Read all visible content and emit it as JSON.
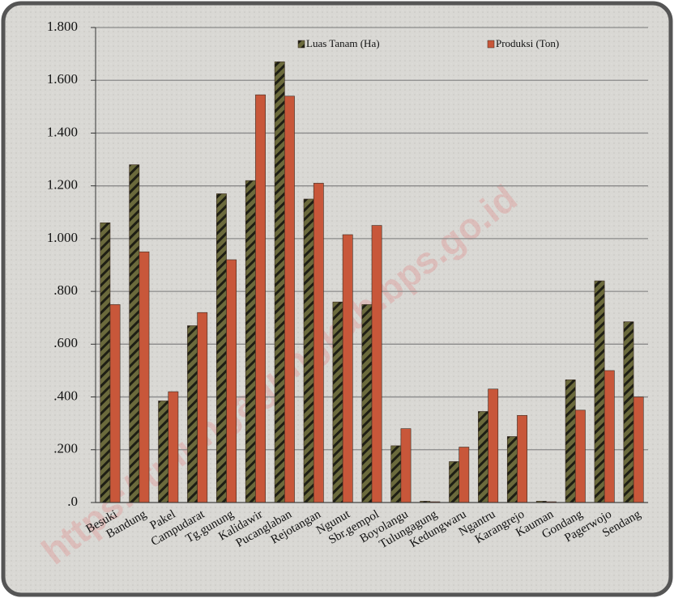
{
  "chart_data": {
    "type": "bar",
    "categories": [
      "Besuki",
      "Bandung",
      "Pakel",
      "Campudarat",
      "Tg.gunung",
      "Kalidawir",
      "Pucanglaban",
      "Rejotangan",
      "Ngunut",
      "Sbr.gempol",
      "Boyolangu",
      "Tulungagung",
      "Kedungwaru",
      "Ngantru",
      "Karangrejo",
      "Kauman",
      "Gondang",
      "Pagerwojo",
      "Sendang"
    ],
    "series": [
      {
        "name": "Luas Tanam (Ha)",
        "color": "#6b6a3c",
        "values": [
          1060,
          1280,
          385,
          670,
          1170,
          1220,
          1670,
          1150,
          760,
          750,
          215,
          5,
          155,
          345,
          250,
          5,
          465,
          840,
          685
        ]
      },
      {
        "name": "Produksi (Ton)",
        "color": "#c8573a",
        "values": [
          750,
          950,
          420,
          720,
          920,
          1545,
          1540,
          1210,
          1015,
          1050,
          280,
          3,
          210,
          430,
          330,
          3,
          350,
          500,
          400
        ]
      }
    ],
    "ylim": [
      0,
      1800
    ],
    "yticks": [
      {
        "value": 0,
        "label": ".0"
      },
      {
        "value": 200,
        "label": ".200"
      },
      {
        "value": 400,
        "label": ".400"
      },
      {
        "value": 600,
        "label": ".600"
      },
      {
        "value": 800,
        "label": ".800"
      },
      {
        "value": 1000,
        "label": "1.000"
      },
      {
        "value": 1200,
        "label": "1.200"
      },
      {
        "value": 1400,
        "label": "1.400"
      },
      {
        "value": 1600,
        "label": "1.600"
      },
      {
        "value": 1800,
        "label": "1.800"
      }
    ],
    "grid": true,
    "watermark": "https://tulungagungkab.bps.go.id"
  }
}
